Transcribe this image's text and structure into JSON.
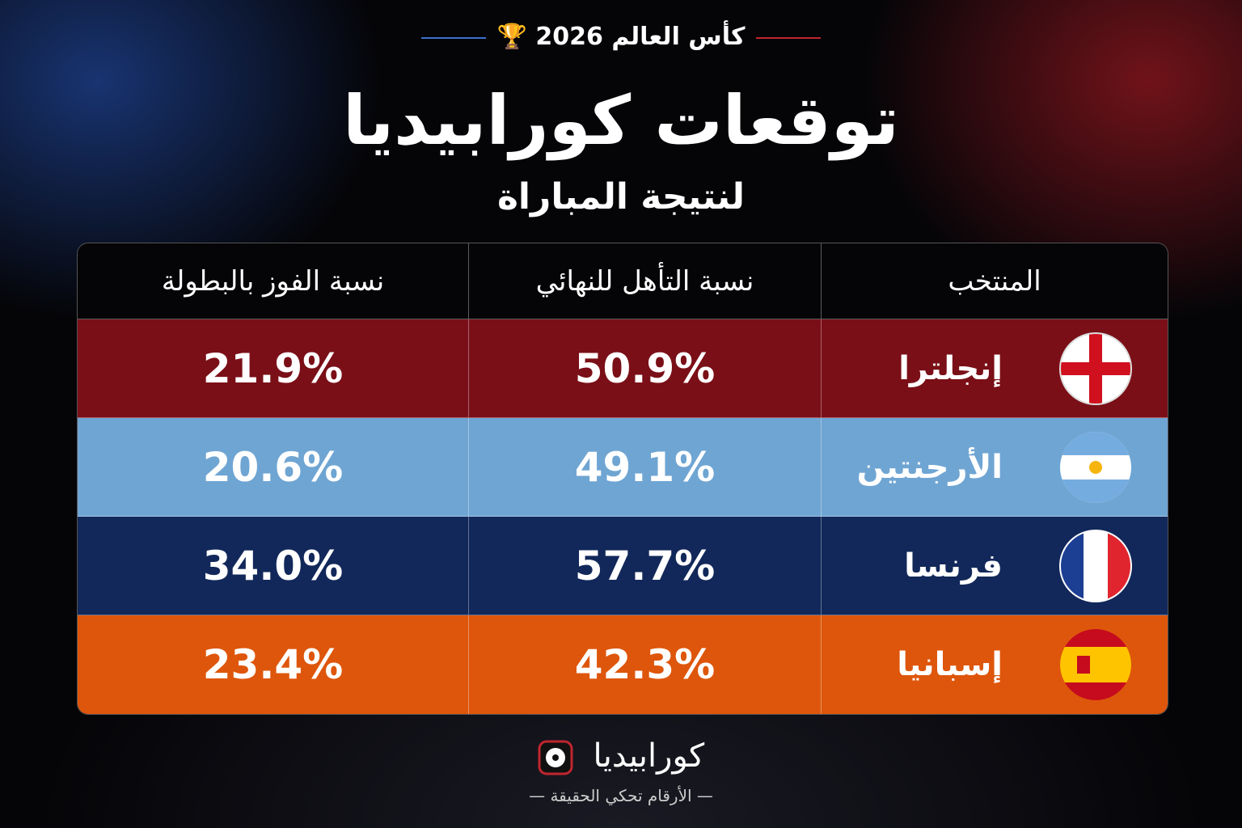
{
  "header": {
    "kicker": "كأس العالم 2026",
    "title": "توقعات كورابيديا",
    "subtitle": "لنتيجة المباراة"
  },
  "table": {
    "columns": [
      "المنتخب",
      "نسبة التأهل للنهائي",
      "نسبة الفوز بالبطولة"
    ],
    "rows": [
      [
        "إنجلترا",
        "50.9%",
        "21.9%"
      ],
      [
        "الأرجنتين",
        "49.1%",
        "20.6%"
      ],
      [
        "فرنسا",
        "57.7%",
        "34.0%"
      ],
      [
        "إسبانيا",
        "42.3%",
        "23.4%"
      ]
    ]
  },
  "footer": {
    "brand": "كورابيديا",
    "tagline": "الأرقام تحكي الحقيقة"
  }
}
